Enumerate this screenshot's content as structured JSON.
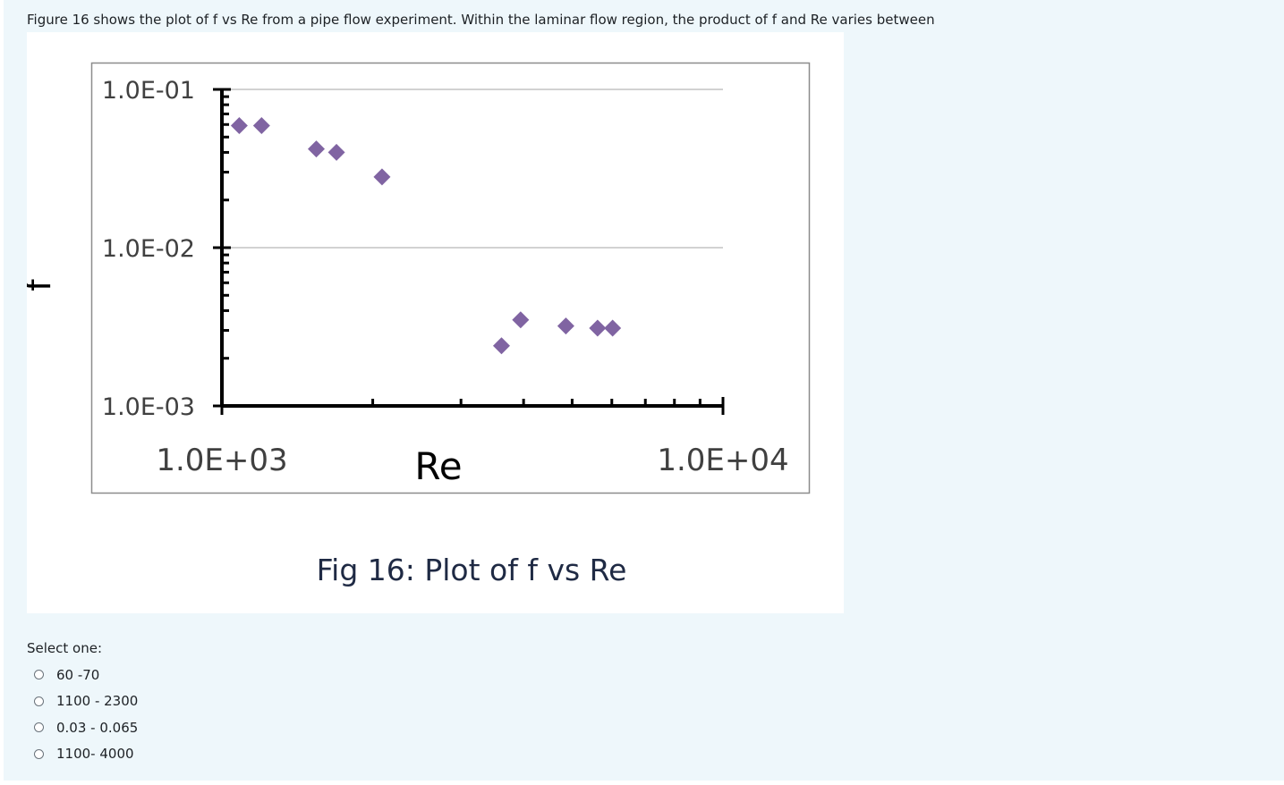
{
  "question": {
    "text": "Figure 16 shows the plot of f vs Re from a pipe flow experiment. Within the laminar flow region, the product of f and Re varies between"
  },
  "figure": {
    "caption": "Fig 16: Plot of f vs  Re"
  },
  "chart_data": {
    "type": "scatter",
    "xlabel": "Re",
    "ylabel": "f",
    "xscale": "log",
    "yscale": "log",
    "xlim": [
      1000,
      10000
    ],
    "ylim": [
      0.001,
      0.1
    ],
    "x_tick_labels": [
      "1.0E+03",
      "1.0E+04"
    ],
    "y_tick_labels": [
      "1.0E-01",
      "1.0E-02",
      "1.0E-03"
    ],
    "x_ticks": [
      1000,
      10000
    ],
    "y_ticks": [
      0.1,
      0.01,
      0.001
    ],
    "grid": "horizontal",
    "marker": "diamond",
    "marker_color": "#8064a2",
    "series": [
      {
        "points": [
          [
            1083,
            0.059
          ],
          [
            1200,
            0.059
          ],
          [
            1543,
            0.042
          ],
          [
            1693,
            0.04
          ],
          [
            2087,
            0.028
          ],
          [
            3614,
            0.0024
          ],
          [
            3946,
            0.0035
          ],
          [
            4858,
            0.0032
          ],
          [
            5620,
            0.0031
          ],
          [
            6022,
            0.0031
          ]
        ]
      }
    ]
  },
  "answer": {
    "prompt": "Select one:",
    "options": [
      {
        "label": "60 -70"
      },
      {
        "label": "1100 - 2300"
      },
      {
        "label": "0.03 - 0.065"
      },
      {
        "label": "1100- 4000"
      }
    ]
  }
}
